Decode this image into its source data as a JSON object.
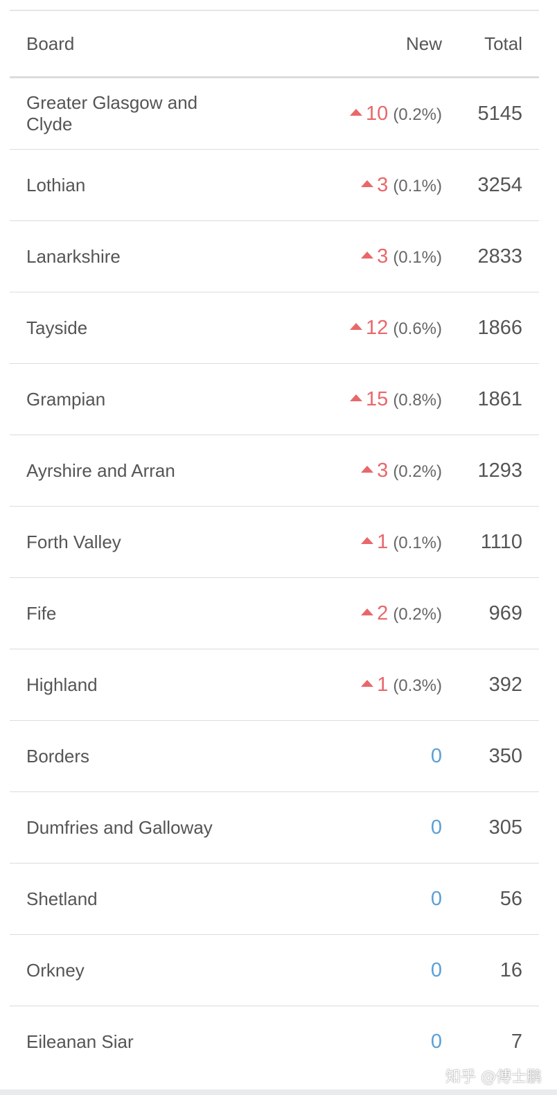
{
  "table": {
    "headers": {
      "board": "Board",
      "new": "New",
      "total": "Total"
    },
    "rows": [
      {
        "board": "Greater Glasgow and Clyde",
        "new": "10",
        "pct": "(0.2%)",
        "total": "5145",
        "trend": "up"
      },
      {
        "board": "Lothian",
        "new": "3",
        "pct": "(0.1%)",
        "total": "3254",
        "trend": "up"
      },
      {
        "board": "Lanarkshire",
        "new": "3",
        "pct": "(0.1%)",
        "total": "2833",
        "trend": "up"
      },
      {
        "board": "Tayside",
        "new": "12",
        "pct": "(0.6%)",
        "total": "1866",
        "trend": "up"
      },
      {
        "board": "Grampian",
        "new": "15",
        "pct": "(0.8%)",
        "total": "1861",
        "trend": "up"
      },
      {
        "board": "Ayrshire and Arran",
        "new": "3",
        "pct": "(0.2%)",
        "total": "1293",
        "trend": "up"
      },
      {
        "board": "Forth Valley",
        "new": "1",
        "pct": "(0.1%)",
        "total": "1110",
        "trend": "up"
      },
      {
        "board": "Fife",
        "new": "2",
        "pct": "(0.2%)",
        "total": "969",
        "trend": "up"
      },
      {
        "board": "Highland",
        "new": "1",
        "pct": "(0.3%)",
        "total": "392",
        "trend": "up"
      },
      {
        "board": "Borders",
        "new": "0",
        "pct": "",
        "total": "350",
        "trend": "none"
      },
      {
        "board": "Dumfries and Galloway",
        "new": "0",
        "pct": "",
        "total": "305",
        "trend": "none"
      },
      {
        "board": "Shetland",
        "new": "0",
        "pct": "",
        "total": "56",
        "trend": "none"
      },
      {
        "board": "Orkney",
        "new": "0",
        "pct": "",
        "total": "16",
        "trend": "none"
      },
      {
        "board": "Eileanan Siar",
        "new": "0",
        "pct": "",
        "total": "7",
        "trend": "none"
      }
    ]
  },
  "colors": {
    "increase": "#e8686a",
    "zero": "#5a9fd6",
    "text": "#555555",
    "divider": "#dcdcdc"
  },
  "icons": {
    "increase": "triangle-up-icon"
  },
  "watermark": "知乎 @傅士鹏"
}
